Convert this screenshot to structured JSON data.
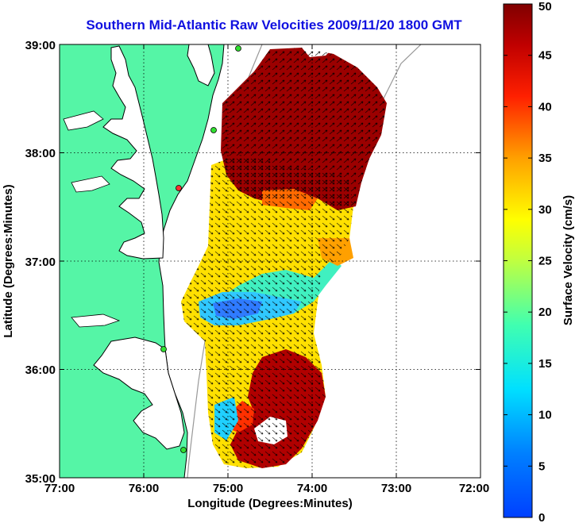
{
  "map": {
    "title": "Southern Mid-Atlantic Raw Velocities 2009/11/20 1800 GMT",
    "xlabel": "Longitude (Degrees:Minutes)",
    "ylabel": "Latitude (Degrees:Minutes)",
    "x_ticks": [
      "77:00",
      "76:00",
      "75:00",
      "74:00",
      "73:00",
      "72:00"
    ],
    "y_ticks": [
      "39:00",
      "38:00",
      "37:00",
      "36:00",
      "35:00"
    ],
    "colors": {
      "land": "#55f5a6",
      "ocean": "#ffffff",
      "title": "#1010e0"
    }
  },
  "chart_data": {
    "type": "heatmap",
    "title": "Southern Mid-Atlantic Raw Velocities 2009/11/20 1800 GMT",
    "xlabel": "Longitude (Degrees:Minutes)",
    "ylabel": "Latitude (Degrees:Minutes)",
    "xlim": [
      -77,
      -72
    ],
    "ylim": [
      35,
      39
    ],
    "grid": true,
    "colorbar": {
      "label": "Surface Velocity (cm/s)",
      "range": [
        0,
        50
      ],
      "ticks": [
        "0",
        "5",
        "10",
        "15",
        "20",
        "25",
        "30",
        "35",
        "40",
        "45",
        "50"
      ],
      "colormap": "jet"
    }
  }
}
